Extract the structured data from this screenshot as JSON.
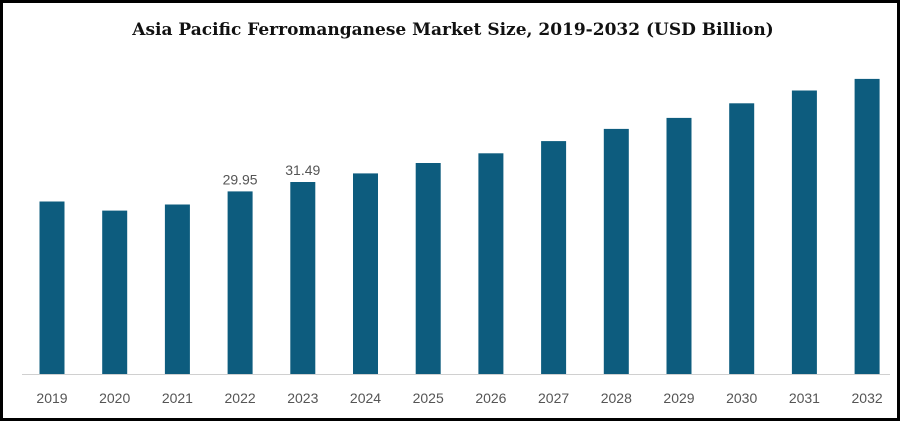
{
  "chart_data": {
    "type": "bar",
    "title": "Asia Pacific Ferromanganese Market Size, 2019-2032 (USD Billion)",
    "xlabel": "",
    "ylabel": "",
    "categories": [
      "2019",
      "2020",
      "2021",
      "2022",
      "2023",
      "2024",
      "2025",
      "2026",
      "2027",
      "2028",
      "2029",
      "2030",
      "2031",
      "2032"
    ],
    "values": [
      28.3,
      26.8,
      27.8,
      29.95,
      31.49,
      32.9,
      34.6,
      36.2,
      38.2,
      40.2,
      42.0,
      44.4,
      46.5,
      48.4
    ],
    "data_labels": [
      {
        "category": "2022",
        "text": "29.95"
      },
      {
        "category": "2023",
        "text": "31.49"
      }
    ],
    "ylim": [
      0,
      51.5
    ],
    "grid": false,
    "legend": "none",
    "bar_color": "#0d5c7e",
    "axis_color": "#d0d0d0"
  }
}
